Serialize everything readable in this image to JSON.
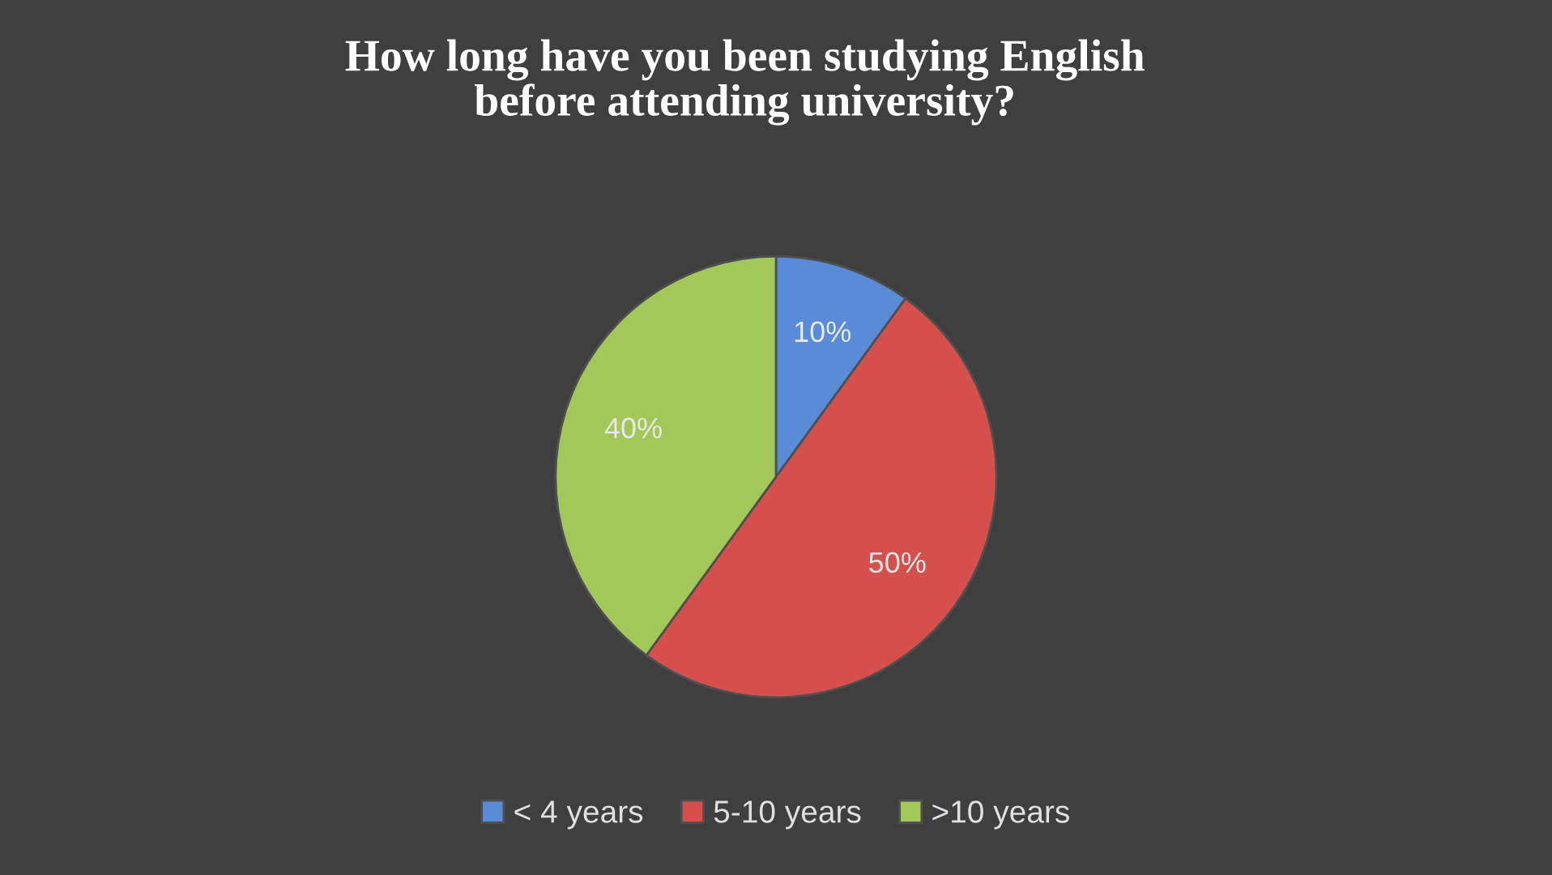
{
  "chart_data": {
    "type": "pie",
    "title": "How long have you been studying English\nbefore attending university?",
    "categories": [
      "< 4 years",
      "5-10 years",
      ">10 years"
    ],
    "values": [
      10,
      50,
      40
    ],
    "colors": [
      "#5a8bd6",
      "#d5504c",
      "#a2c85a"
    ],
    "value_labels": [
      "10%",
      "50%",
      "40%"
    ],
    "legend": "bottom"
  }
}
